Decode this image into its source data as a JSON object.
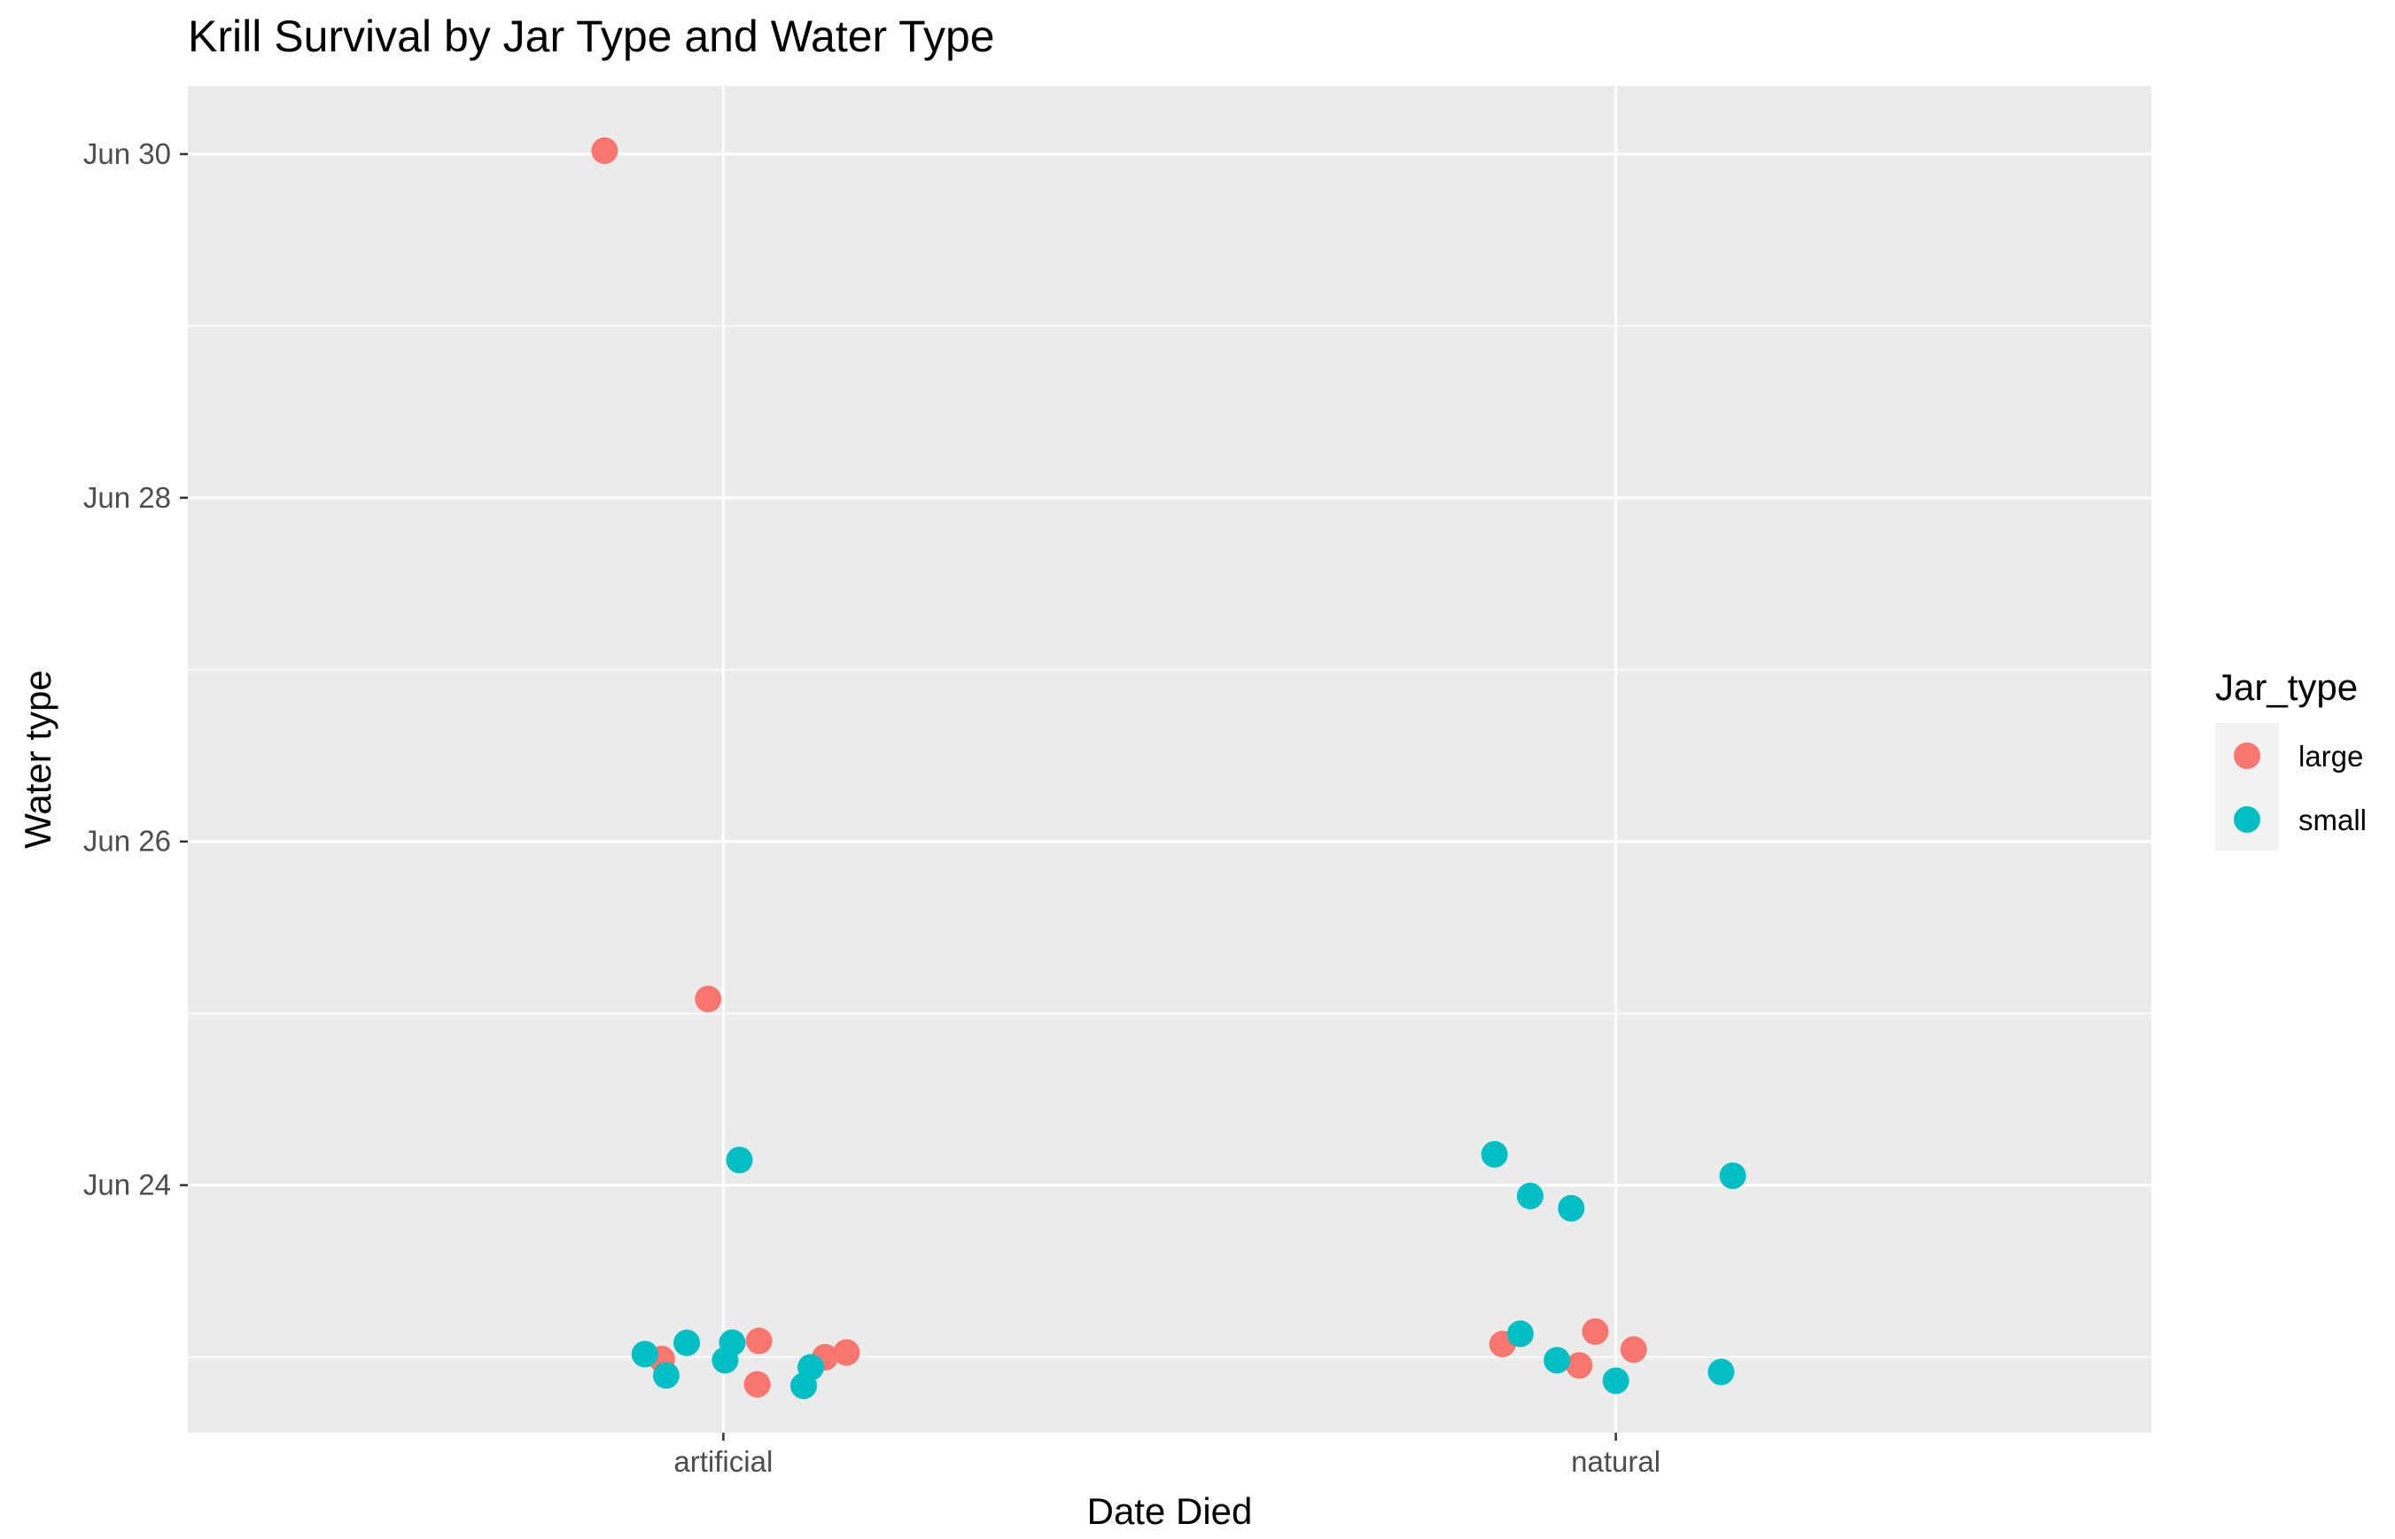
{
  "chart_data": {
    "type": "scatter",
    "title": "Krill Survival by Jar Type and Water Type",
    "xlabel": "Date Died",
    "ylabel": "Water type",
    "categories": [
      "artificial",
      "natural"
    ],
    "y_ticks": [
      {
        "value": "2023-06-24",
        "label": "Jun 24"
      },
      {
        "value": "2023-06-26",
        "label": "Jun 26"
      },
      {
        "value": "2023-06-28",
        "label": "Jun 28"
      },
      {
        "value": "2023-06-30",
        "label": "Jun 30"
      }
    ],
    "ylim": [
      "2023-06-22T13:26",
      "2023-06-30T09:31"
    ],
    "grid": true,
    "legend": {
      "title": "Jar_type",
      "position": "right",
      "entries": [
        {
          "name": "large",
          "color": "#F8766D"
        },
        {
          "name": "small",
          "color": "#00BFC4"
        }
      ]
    },
    "series": [
      {
        "name": "large",
        "color": "#F8766D",
        "points": [
          {
            "x": "artificial",
            "jitter": -0.133,
            "y": "2023-06-30T00:29"
          },
          {
            "x": "artificial",
            "jitter": -0.017,
            "y": "2023-06-25T02:00"
          },
          {
            "x": "artificial",
            "jitter": -0.069,
            "y": "2023-06-22T23:43"
          },
          {
            "x": "artificial",
            "jitter": 0.04,
            "y": "2023-06-23T02:15"
          },
          {
            "x": "artificial",
            "jitter": 0.038,
            "y": "2023-06-22T20:11"
          },
          {
            "x": "artificial",
            "jitter": 0.114,
            "y": "2023-06-22T23:58"
          },
          {
            "x": "artificial",
            "jitter": 0.138,
            "y": "2023-06-23T00:38"
          },
          {
            "x": "natural",
            "jitter": -0.127,
            "y": "2023-06-23T01:49"
          },
          {
            "x": "natural",
            "jitter": -0.041,
            "y": "2023-06-22T22:49"
          },
          {
            "x": "natural",
            "jitter": -0.023,
            "y": "2023-06-23T03:33"
          },
          {
            "x": "natural",
            "jitter": 0.02,
            "y": "2023-06-23T01:03"
          }
        ]
      },
      {
        "name": "small",
        "color": "#00BFC4",
        "points": [
          {
            "x": "artificial",
            "jitter": -0.088,
            "y": "2023-06-23T00:24"
          },
          {
            "x": "artificial",
            "jitter": -0.064,
            "y": "2023-06-22T21:26"
          },
          {
            "x": "artificial",
            "jitter": -0.041,
            "y": "2023-06-23T01:59"
          },
          {
            "x": "artificial",
            "jitter": 0.002,
            "y": "2023-06-22T23:33"
          },
          {
            "x": "artificial",
            "jitter": 0.01,
            "y": "2023-06-23T02:00"
          },
          {
            "x": "artificial",
            "jitter": 0.018,
            "y": "2023-06-24T03:31"
          },
          {
            "x": "artificial",
            "jitter": 0.098,
            "y": "2023-06-22T22:34"
          },
          {
            "x": "artificial",
            "jitter": 0.09,
            "y": "2023-06-22T19:58"
          },
          {
            "x": "natural",
            "jitter": -0.136,
            "y": "2023-06-24T04:18"
          },
          {
            "x": "natural",
            "jitter": -0.107,
            "y": "2023-06-23T03:15"
          },
          {
            "x": "natural",
            "jitter": -0.096,
            "y": "2023-06-23T22:29"
          },
          {
            "x": "natural",
            "jitter": -0.066,
            "y": "2023-06-22T23:33"
          },
          {
            "x": "natural",
            "jitter": -0.05,
            "y": "2023-06-23T20:46"
          },
          {
            "x": "natural",
            "jitter": 0.0,
            "y": "2023-06-22T20:41"
          },
          {
            "x": "natural",
            "jitter": 0.118,
            "y": "2023-06-22T21:55"
          },
          {
            "x": "natural",
            "jitter": 0.131,
            "y": "2023-06-24T01:19"
          }
        ]
      }
    ]
  }
}
